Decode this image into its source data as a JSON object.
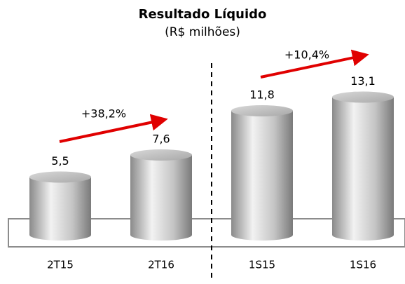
{
  "chart_data": {
    "type": "bar",
    "title": "Resultado Líquido",
    "subtitle": "(R$ milhões)",
    "categories": [
      "2T15",
      "2T16",
      "1S15",
      "1S16"
    ],
    "values": [
      5.5,
      7.6,
      11.8,
      13.1
    ],
    "value_labels": [
      "5,5",
      "7,6",
      "11,8",
      "13,1"
    ],
    "annotations": [
      "+38,2%",
      "+10,4%"
    ]
  }
}
